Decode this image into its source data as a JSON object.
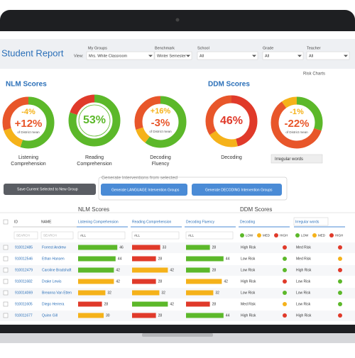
{
  "header": {
    "title": "Student Report",
    "filters": [
      {
        "label": "My Groups",
        "prefix": "View:",
        "value": "Mrs. White Classroom"
      },
      {
        "label": "Benchmark",
        "value": "Winter Semester"
      },
      {
        "label": "School",
        "value": "All"
      },
      {
        "label": "Grade",
        "value": "All"
      },
      {
        "label": "Teacher",
        "value": "All"
      }
    ],
    "risk_charts": "Risk Charts"
  },
  "nlm": {
    "title": "NLM Scores",
    "donuts": [
      {
        "top": "-4%",
        "main": "+12%",
        "color": "#e8562a",
        "note": "of District mean",
        "label": "Listening Comprehension"
      },
      {
        "main": "53%",
        "color": "#5cb82a",
        "label": "Reading Comprehension"
      },
      {
        "top": "+16%",
        "main": "-3%",
        "color": "#e8562a",
        "note": "of District mean",
        "label": "Decoding Fluency"
      }
    ]
  },
  "ddm": {
    "title": "DDM Scores",
    "donuts": [
      {
        "main": "46%",
        "color": "#e03a2a",
        "label": "Decoding"
      },
      {
        "top": "-1%",
        "main": "-22%",
        "color": "#e8562a",
        "note": "of District mean",
        "select": "Irregular words"
      }
    ]
  },
  "actions": {
    "save": "Save Current Selected to New Group",
    "generate_title": "Generate Interventions from selected",
    "language": "Generate LANGUAGE Intervention Groups",
    "decoding": "Generate DECODING Intervention Groups"
  },
  "table": {
    "groups": [
      "NLM Scores",
      "DDM Scores"
    ],
    "columns": [
      "ID",
      "NAME",
      "Listening Comprehension",
      "Reading Comprehension",
      "Decoding Fluency",
      "Decoding",
      "Irregular words"
    ],
    "search": "SEARCH",
    "all": "ALL",
    "legend": [
      {
        "label": "LOW",
        "color": "#5cb82a"
      },
      {
        "label": "MED",
        "color": "#f5b21a"
      },
      {
        "label": "HIGH",
        "color": "#e03a2a"
      }
    ],
    "rows": [
      {
        "id": "910012485",
        "name": "Forrest Andrew",
        "scores": [
          {
            "value": 46,
            "color": "#5cb82a"
          },
          {
            "value": 33,
            "color": "#e03a2a"
          },
          {
            "value": 28,
            "color": "#5cb82a"
          }
        ],
        "risks": [
          {
            "text": "High Risk",
            "color": "#e03a2a"
          },
          {
            "text": "Med Risk",
            "color": "#e03a2a"
          }
        ]
      },
      {
        "id": "910012546",
        "name": "Ethan Hansen",
        "scores": [
          {
            "value": 44,
            "color": "#5cb82a"
          },
          {
            "value": 28,
            "color": "#e03a2a"
          },
          {
            "value": 44,
            "color": "#5cb82a"
          }
        ],
        "risks": [
          {
            "text": "Low Risk",
            "color": "#5cb82a"
          },
          {
            "text": "Med Risk",
            "color": "#f5b21a"
          }
        ]
      },
      {
        "id": "910012479",
        "name": "Caroline Bradshaft",
        "scores": [
          {
            "value": 42,
            "color": "#5cb82a"
          },
          {
            "value": 42,
            "color": "#f5b21a"
          },
          {
            "value": 28,
            "color": "#5cb82a"
          }
        ],
        "risks": [
          {
            "text": "Low Risk",
            "color": "#5cb82a"
          },
          {
            "text": "High Risk",
            "color": "#e03a2a"
          }
        ]
      },
      {
        "id": "910011682",
        "name": "Drake Lewis",
        "scores": [
          {
            "value": 42,
            "color": "#f5b21a"
          },
          {
            "value": 28,
            "color": "#e03a2a"
          },
          {
            "value": 42,
            "color": "#f5b21a"
          }
        ],
        "risks": [
          {
            "text": "High Risk",
            "color": "#e03a2a"
          },
          {
            "text": "Low Risk",
            "color": "#5cb82a"
          }
        ]
      },
      {
        "id": "910014069",
        "name": "Breanna Van Etten",
        "scores": [
          {
            "value": 32,
            "color": "#f5b21a"
          },
          {
            "value": 32,
            "color": "#f5b21a"
          },
          {
            "value": 32,
            "color": "#f5b21a"
          }
        ],
        "risks": [
          {
            "text": "Low Risk",
            "color": "#5cb82a"
          },
          {
            "text": "Low Risk",
            "color": "#5cb82a"
          }
        ]
      },
      {
        "id": "910011605",
        "name": "Diego Herrera",
        "scores": [
          {
            "value": 28,
            "color": "#e03a2a"
          },
          {
            "value": 42,
            "color": "#5cb82a"
          },
          {
            "value": 28,
            "color": "#e03a2a"
          }
        ],
        "risks": [
          {
            "text": "Med Risk",
            "color": "#f5b21a"
          },
          {
            "text": "Low Risk",
            "color": "#5cb82a"
          }
        ]
      },
      {
        "id": "910011677",
        "name": "Quinn Gill",
        "scores": [
          {
            "value": 30,
            "color": "#f5b21a"
          },
          {
            "value": 28,
            "color": "#e03a2a"
          },
          {
            "value": 44,
            "color": "#5cb82a"
          }
        ],
        "risks": [
          {
            "text": "High Risk",
            "color": "#e03a2a"
          },
          {
            "text": "High Risk",
            "color": "#e03a2a"
          }
        ]
      }
    ]
  }
}
